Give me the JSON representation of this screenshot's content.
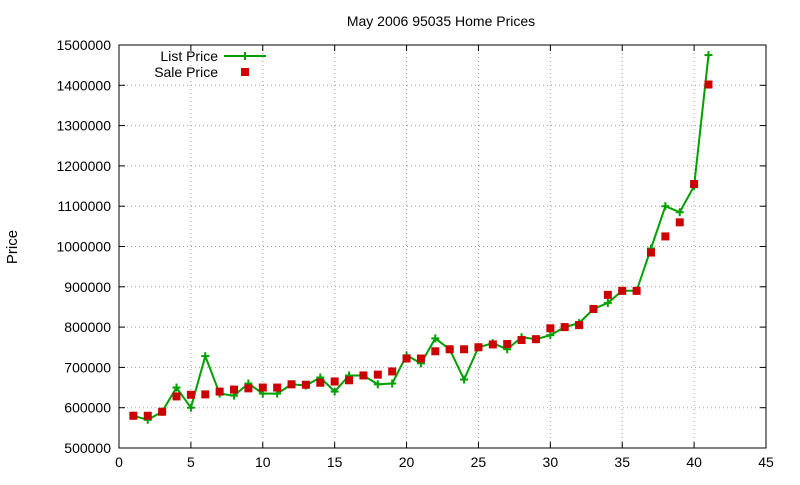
{
  "chart_data": {
    "type": "line",
    "title": "May 2006 95035 Home Prices",
    "xlabel": "",
    "ylabel": "Price",
    "xlim": [
      0,
      45
    ],
    "ylim": [
      500000,
      1500000
    ],
    "xticks": [
      0,
      5,
      10,
      15,
      20,
      25,
      30,
      35,
      40,
      45
    ],
    "yticks": [
      500000,
      600000,
      700000,
      800000,
      900000,
      1000000,
      1100000,
      1200000,
      1300000,
      1400000,
      1500000
    ],
    "grid": true,
    "legend_position": "top-left",
    "series": [
      {
        "name": "List Price",
        "style": "line-plus",
        "color": "#00a000",
        "x": [
          1,
          2,
          3,
          4,
          5,
          6,
          7,
          8,
          9,
          10,
          11,
          12,
          13,
          14,
          15,
          16,
          17,
          18,
          19,
          20,
          21,
          22,
          23,
          24,
          25,
          26,
          27,
          28,
          29,
          30,
          31,
          32,
          33,
          34,
          35,
          36,
          37,
          38,
          39,
          40,
          41
        ],
        "y": [
          580000,
          570000,
          590000,
          650000,
          600000,
          728000,
          635000,
          630000,
          660000,
          635000,
          635000,
          658000,
          655000,
          675000,
          640000,
          680000,
          680000,
          658000,
          660000,
          730000,
          710000,
          772000,
          745000,
          670000,
          750000,
          760000,
          745000,
          775000,
          770000,
          780000,
          800000,
          810000,
          845000,
          860000,
          890000,
          890000,
          995000,
          1100000,
          1085000,
          1150000,
          1475000
        ]
      },
      {
        "name": "Sale Price",
        "style": "square-points",
        "color": "#cc0000",
        "x": [
          1,
          2,
          3,
          4,
          5,
          6,
          7,
          8,
          9,
          10,
          11,
          12,
          13,
          14,
          15,
          16,
          17,
          18,
          19,
          20,
          21,
          22,
          23,
          24,
          25,
          26,
          27,
          28,
          29,
          30,
          31,
          32,
          33,
          34,
          35,
          36,
          37,
          38,
          39,
          40,
          41
        ],
        "y": [
          580000,
          580000,
          590000,
          628000,
          632000,
          633000,
          640000,
          645000,
          648000,
          650000,
          650000,
          658000,
          657000,
          662000,
          665000,
          668000,
          680000,
          682000,
          690000,
          722000,
          722000,
          740000,
          745000,
          745000,
          750000,
          757000,
          758000,
          768000,
          770000,
          797000,
          800000,
          805000,
          845000,
          880000,
          890000,
          890000,
          985000,
          1025000,
          1060000,
          1155000,
          1402000
        ]
      }
    ]
  }
}
